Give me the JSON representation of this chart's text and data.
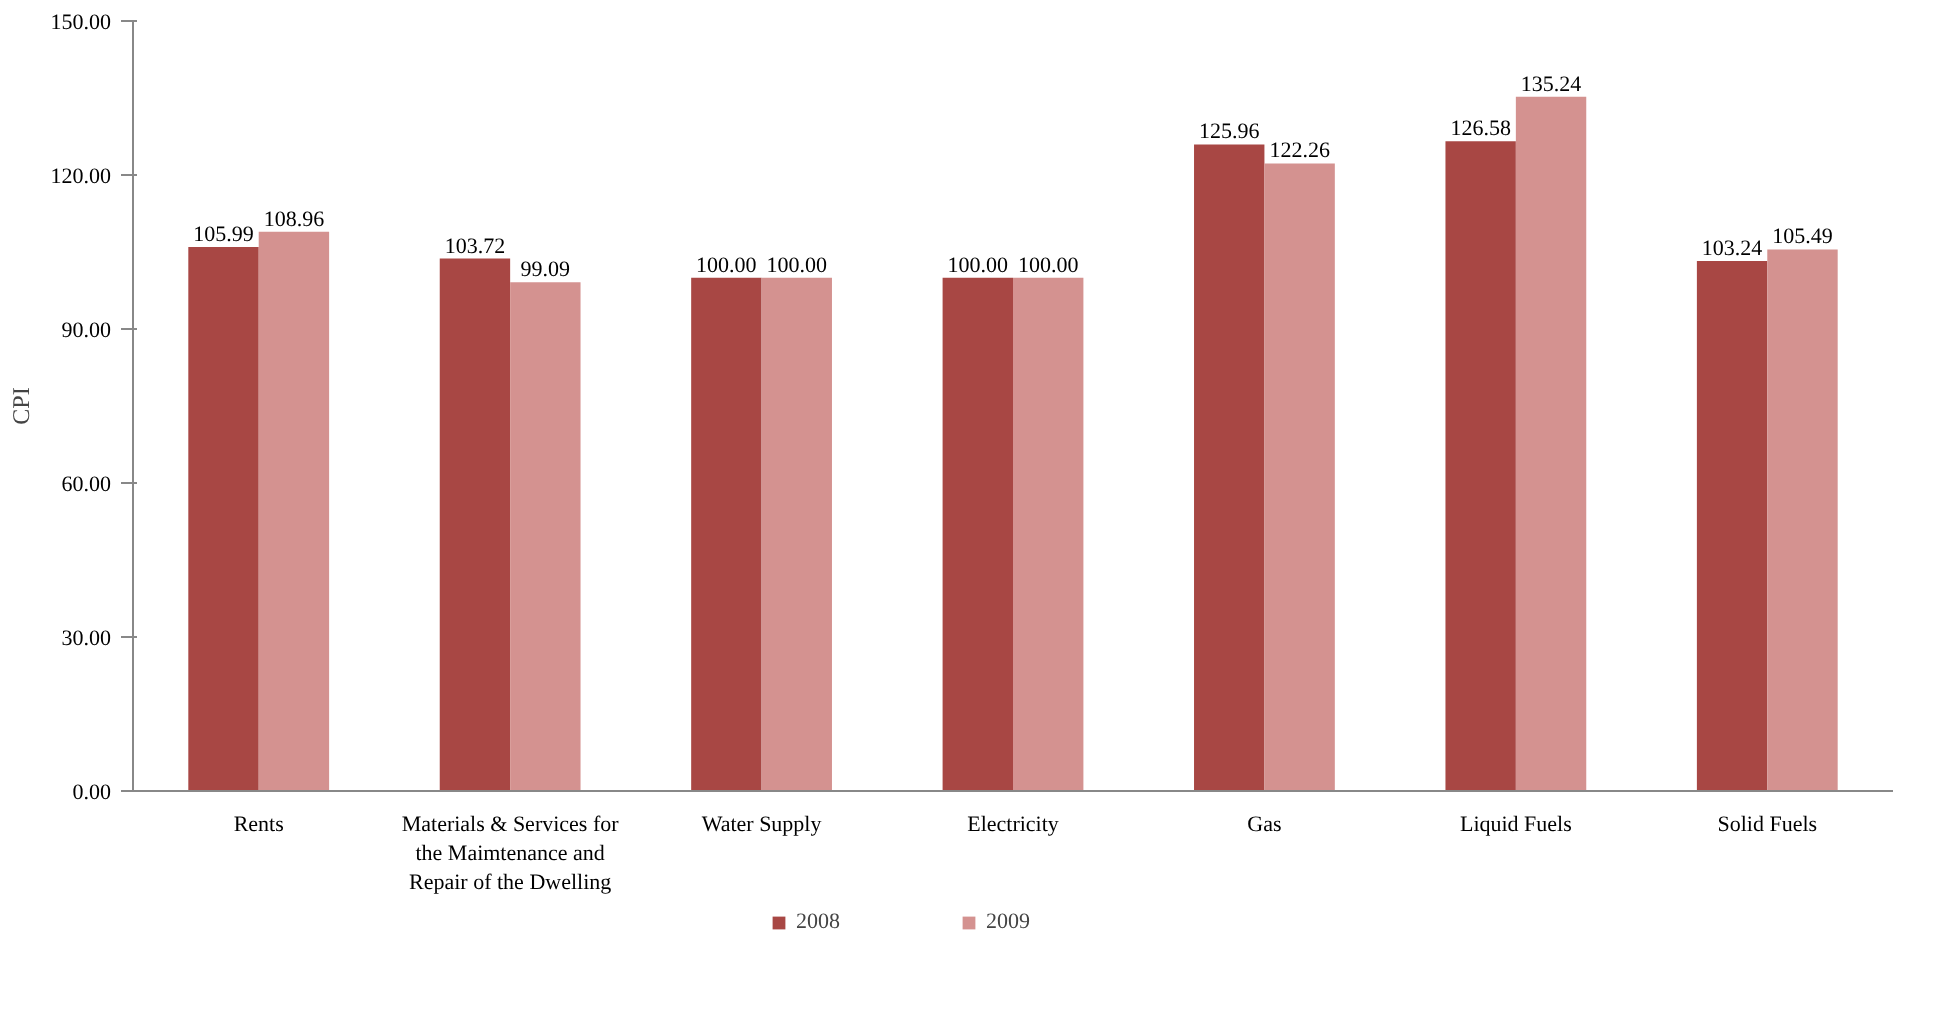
{
  "chart_data": {
    "type": "bar",
    "ylabel": "CPI",
    "categories": [
      "Rents",
      "Materials & Services for\nthe Maimtenance and\nRepair of the Dwelling",
      "Water Supply",
      "Electricity",
      "Gas",
      "Liquid Fuels",
      "Solid Fuels"
    ],
    "series": [
      {
        "name": "2008",
        "color": "#a84744",
        "values": [
          105.99,
          103.72,
          100.0,
          100.0,
          125.96,
          126.58,
          103.24
        ],
        "value_labels": [
          "105.99",
          "103.72",
          "100.00",
          "100.00",
          "125.96",
          "126.58",
          "103.24"
        ]
      },
      {
        "name": "2009",
        "color": "#d49290",
        "values": [
          108.96,
          99.09,
          100.0,
          100.0,
          122.26,
          135.24,
          105.49
        ],
        "value_labels": [
          "108.96",
          "99.09",
          "100.00",
          "100.00",
          "122.26",
          "135.24",
          "105.49"
        ]
      }
    ],
    "ylim": [
      0,
      150
    ],
    "yticks": [
      {
        "value": 0,
        "label": "0.00"
      },
      {
        "value": 30,
        "label": "30.00"
      },
      {
        "value": 60,
        "label": "60.00"
      },
      {
        "value": 90,
        "label": "90.00"
      },
      {
        "value": 120,
        "label": "120.00"
      },
      {
        "value": 150,
        "label": "150.00"
      }
    ],
    "grid": false,
    "legend": "bottom"
  }
}
